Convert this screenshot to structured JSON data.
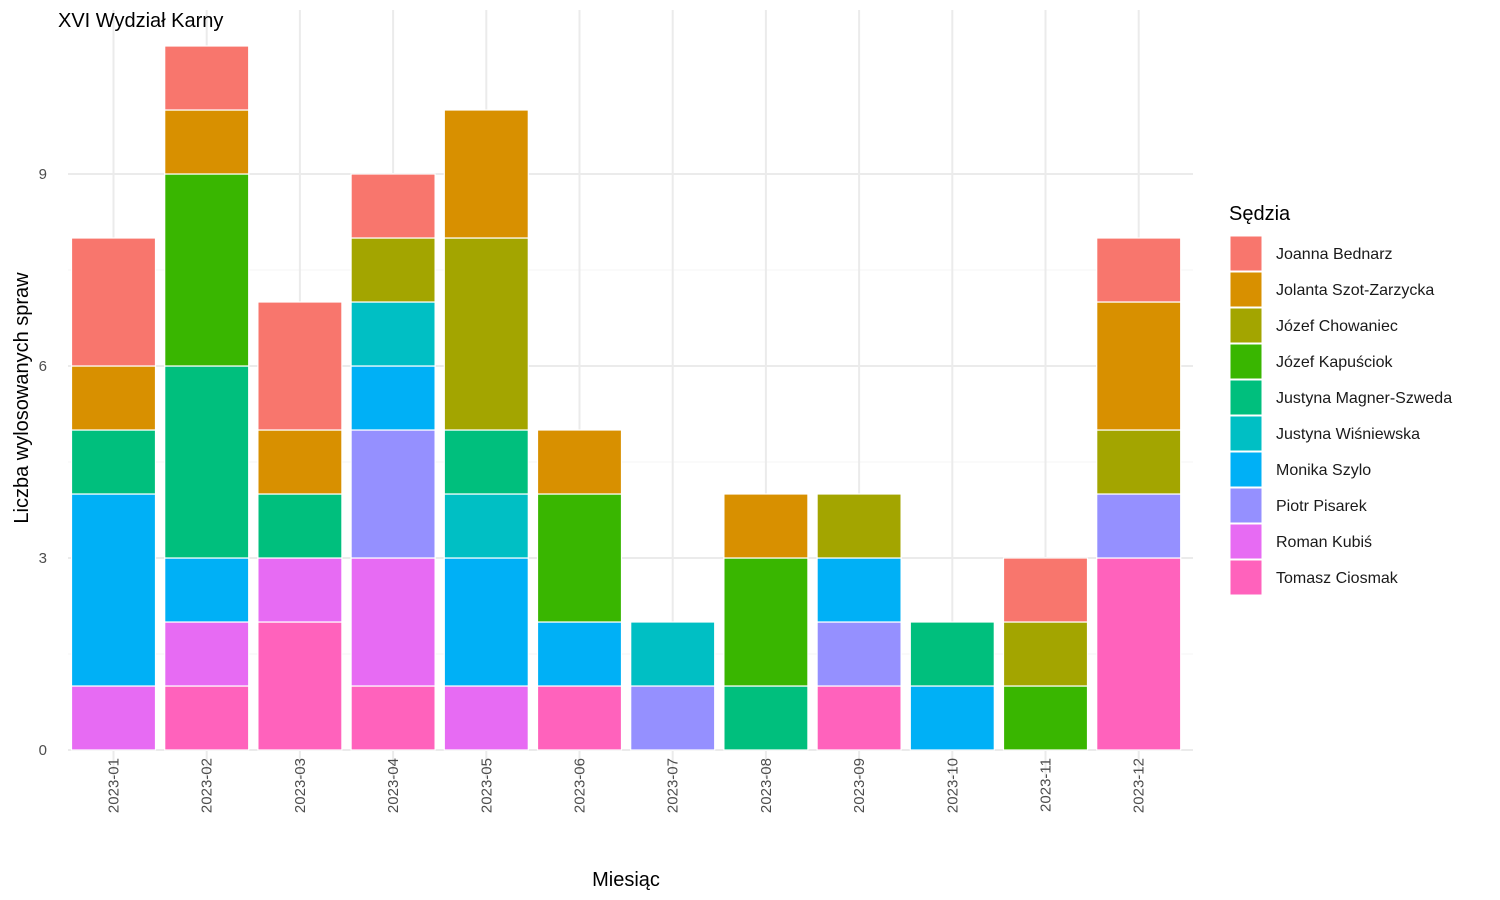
{
  "chart_data": {
    "type": "bar",
    "stacked": true,
    "title": "XVI Wydział Karny",
    "xlabel": "Miesiąc",
    "ylabel": "Liczba wylosowanych spraw",
    "ylim": [
      0,
      11
    ],
    "yticks": [
      0,
      3,
      6,
      9
    ],
    "grid": true,
    "legend": {
      "title": "Sędzia",
      "position": "right"
    },
    "categories": [
      "2023-01",
      "2023-02",
      "2023-03",
      "2023-04",
      "2023-05",
      "2023-06",
      "2023-07",
      "2023-08",
      "2023-09",
      "2023-10",
      "2023-11",
      "2023-12"
    ],
    "series": [
      {
        "name": "Joanna Bednarz",
        "color": "#F8766D",
        "values": [
          2,
          1,
          2,
          1,
          0,
          0,
          0,
          0,
          0,
          0,
          1,
          1
        ]
      },
      {
        "name": "Jolanta Szot-Zarzycka",
        "color": "#D89000",
        "values": [
          1,
          1,
          1,
          0,
          2,
          1,
          0,
          1,
          0,
          0,
          0,
          2
        ]
      },
      {
        "name": "Józef Chowaniec",
        "color": "#A3A500",
        "values": [
          0,
          0,
          0,
          1,
          3,
          0,
          0,
          0,
          1,
          0,
          1,
          1
        ]
      },
      {
        "name": "Józef Kapuściok",
        "color": "#39B600",
        "values": [
          0,
          3,
          0,
          0,
          0,
          2,
          0,
          2,
          0,
          0,
          1,
          0
        ]
      },
      {
        "name": "Justyna Magner-Szweda",
        "color": "#00BF7D",
        "values": [
          1,
          3,
          1,
          0,
          1,
          0,
          0,
          1,
          0,
          1,
          0,
          0
        ]
      },
      {
        "name": "Justyna Wiśniewska",
        "color": "#00BFC4",
        "values": [
          0,
          0,
          0,
          1,
          1,
          0,
          1,
          0,
          0,
          0,
          0,
          0
        ]
      },
      {
        "name": "Monika Szylo",
        "color": "#00B0F6",
        "values": [
          3,
          1,
          0,
          1,
          2,
          1,
          0,
          0,
          1,
          1,
          0,
          0
        ]
      },
      {
        "name": "Piotr Pisarek",
        "color": "#9590FF",
        "values": [
          0,
          0,
          0,
          2,
          0,
          0,
          1,
          0,
          1,
          0,
          0,
          1
        ]
      },
      {
        "name": "Roman Kubiś",
        "color": "#E76BF3",
        "values": [
          1,
          1,
          1,
          2,
          1,
          0,
          0,
          0,
          0,
          0,
          0,
          0
        ]
      },
      {
        "name": "Tomasz Ciosmak",
        "color": "#FF62BC",
        "values": [
          0,
          1,
          2,
          1,
          0,
          1,
          0,
          0,
          1,
          0,
          0,
          3
        ]
      }
    ]
  }
}
